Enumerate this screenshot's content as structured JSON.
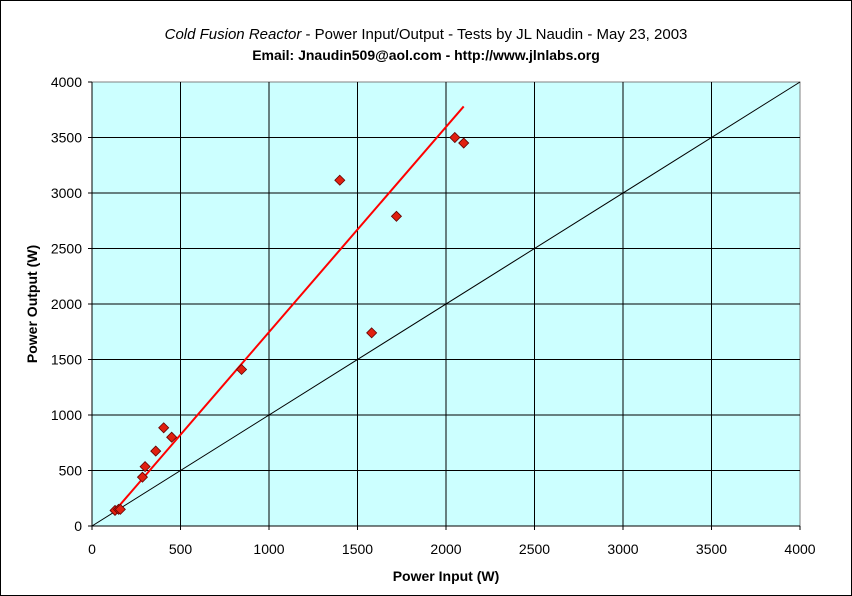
{
  "chart_data": {
    "type": "scatter",
    "title_italic": "Cold Fusion Reactor",
    "title_rest": " - Power Input/Output - Tests by JL Naudin - May 23, 2003",
    "subtitle": "Email: Jnaudin509@aol.com - http://www.jlnlabs.org",
    "xlabel": "Power Input (W)",
    "ylabel": "Power Output (W)",
    "xlim": [
      0,
      4000
    ],
    "ylim": [
      0,
      4000
    ],
    "xticks": [
      0,
      500,
      1000,
      1500,
      2000,
      2500,
      3000,
      3500,
      4000
    ],
    "yticks": [
      0,
      500,
      1000,
      1500,
      2000,
      2500,
      3000,
      3500,
      4000
    ],
    "grid": true,
    "legend": "none",
    "colors": {
      "plot_background": "#ccffff",
      "points": "#e02010",
      "trend": "#ff0000",
      "reference": "#000000"
    },
    "series": [
      {
        "marker": "diamond",
        "points": [
          [
            130,
            140
          ],
          [
            150,
            150
          ],
          [
            160,
            150
          ],
          [
            285,
            440
          ],
          [
            300,
            535
          ],
          [
            360,
            675
          ],
          [
            405,
            885
          ],
          [
            450,
            800
          ],
          [
            845,
            1410
          ],
          [
            1400,
            3115
          ],
          [
            1580,
            1740
          ],
          [
            1720,
            2790
          ],
          [
            2050,
            3500
          ],
          [
            2100,
            3450
          ]
        ]
      }
    ],
    "trendline": [
      [
        120,
        120
      ],
      [
        2100,
        3780
      ]
    ],
    "reference_line": [
      [
        0,
        0
      ],
      [
        4000,
        4000
      ]
    ]
  }
}
